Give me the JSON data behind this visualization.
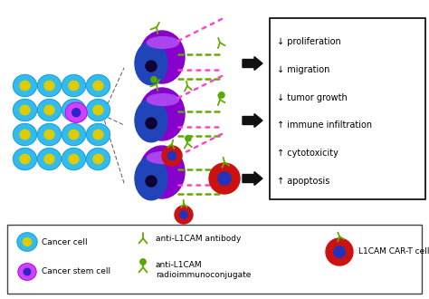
{
  "bg_color": "#ffffff",
  "effects_text": [
    "↓ proliferation",
    "↓ migration",
    "↓ tumor growth",
    "↑ immune infiltration",
    "↑ cytotoxicity",
    "↑ apoptosis"
  ],
  "cancer_cell_color": "#33bbee",
  "cancer_cell_dark": "#2299cc",
  "cancer_cell_nucleus": "#ddcc00",
  "stem_cell_color": "#cc44ff",
  "stem_cell_dark": "#aa00dd",
  "stem_cell_nucleus": "#3322cc",
  "tumor_purple": "#8800cc",
  "tumor_purple_dark": "#6600aa",
  "tumor_blue": "#2244bb",
  "tumor_blue_dark": "#1122aa",
  "tumor_nucleus": "#110033",
  "cart_cell_outer": "#cc1111",
  "cart_cell_inner": "#2233bb",
  "antibody_color": "#66aa00",
  "pink_color": "#ff44cc",
  "green_dot_color": "#55aa00",
  "arrow_color": "#111111",
  "dashed_color": "#555555",
  "box_color": "#000000",
  "text_color": "#000000",
  "fs_legend": 6.5,
  "fs_effects": 7.0
}
